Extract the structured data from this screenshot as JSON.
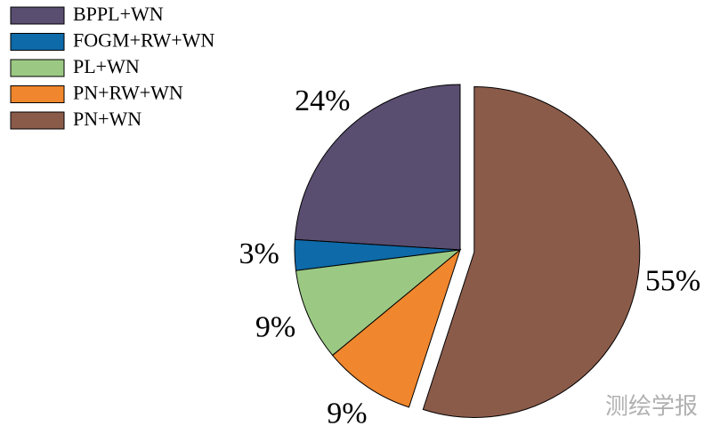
{
  "chart_data": {
    "type": "pie",
    "categories": [
      "BPPL+WN",
      "FOGM+RW+WN",
      "PL+WN",
      "PN+RW+WN",
      "PN+WN"
    ],
    "values": [
      24,
      3,
      9,
      9,
      55
    ],
    "value_labels": [
      "24%",
      "3%",
      "9%",
      "9%",
      "55%"
    ],
    "colors": [
      "#594d70",
      "#0e6aa8",
      "#9bc984",
      "#f0862d",
      "#8b5b4a"
    ],
    "explode": [
      false,
      false,
      false,
      false,
      true
    ],
    "legend": "upper left"
  },
  "watermark": "测绘学报"
}
